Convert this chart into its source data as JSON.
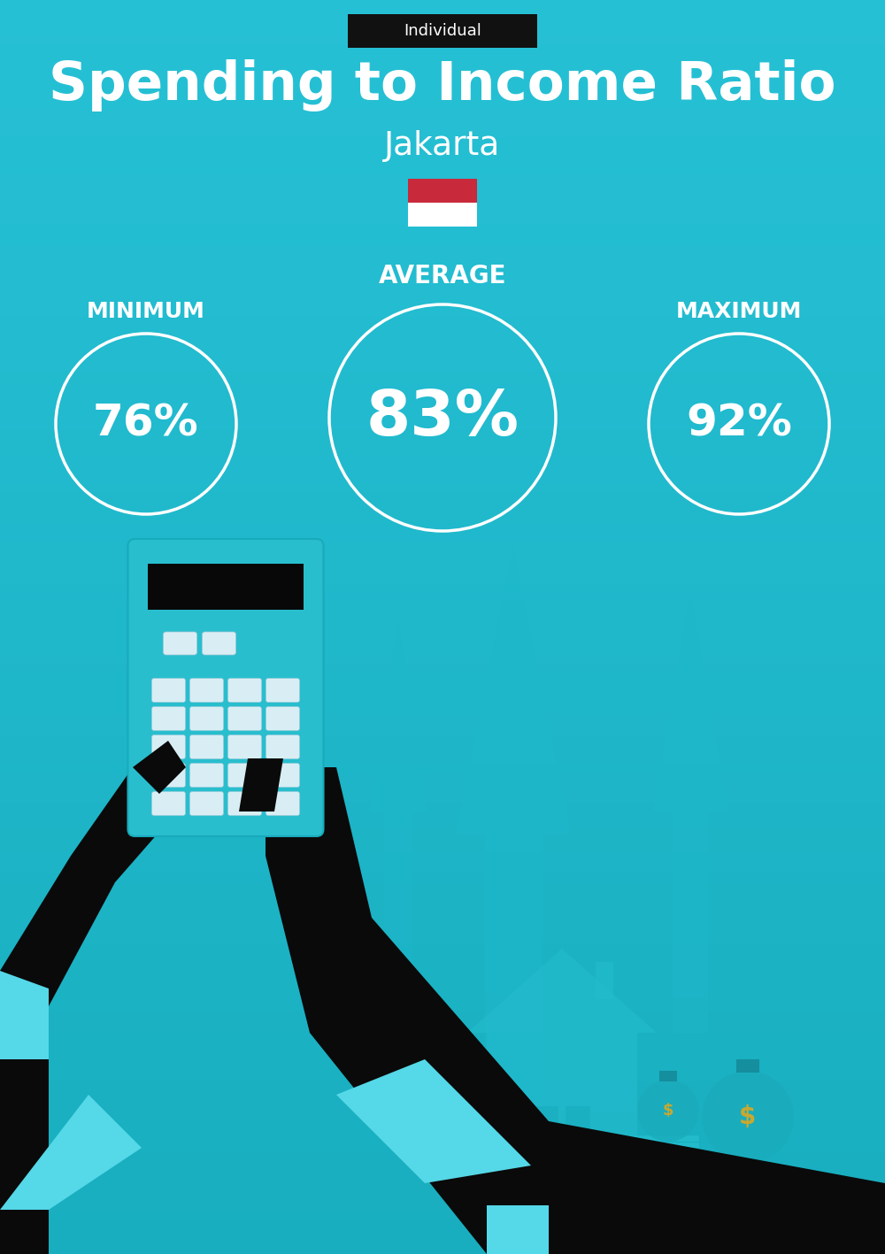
{
  "title": "Spending to Income Ratio",
  "subtitle": "Jakarta",
  "badge_text": "Individual",
  "badge_bg": "#111111",
  "badge_text_color": "#ffffff",
  "bg_top": "#26C0D5",
  "bg_bottom": "#18AEBF",
  "title_color": "#ffffff",
  "subtitle_color": "#ffffff",
  "min_label": "MINIMUM",
  "avg_label": "AVERAGE",
  "max_label": "MAXIMUM",
  "min_value": "76%",
  "avg_value": "83%",
  "max_value": "92%",
  "circle_edge_color": "#ffffff",
  "text_color": "#ffffff",
  "flag_red": "#C8293B",
  "flag_white": "#FFFFFF",
  "label_color": "#ffffff",
  "arrow_color": "#20B8CC",
  "house_color": "#22BBCC",
  "calc_color": "#28BECE",
  "hand_color": "#090909",
  "cuff_color": "#55D8E8",
  "money_bag_color": "#1EAABB",
  "dollar_color": "#D4B840",
  "bill_color": "#25C0D0"
}
